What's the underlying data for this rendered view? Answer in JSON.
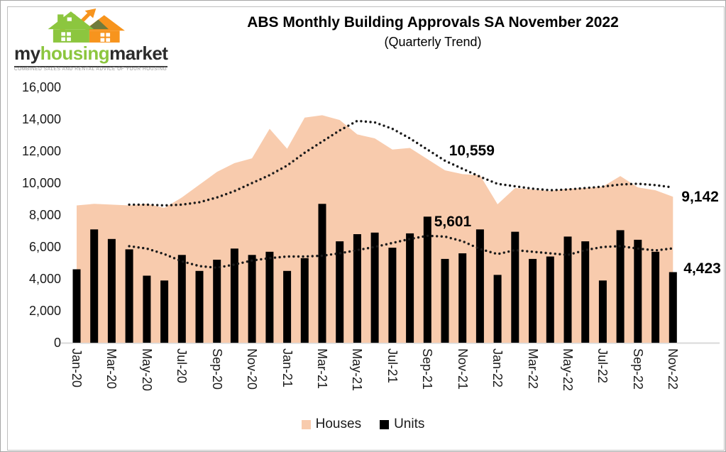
{
  "logo": {
    "word_parts": [
      "my",
      "housing",
      "market"
    ],
    "tagline": "COMBINED SALES AND RENTAL ADVICE OF YOUR HOUSING MARKET",
    "green": "#8CC63F",
    "orange": "#F7941D",
    "dark": "#2B2B2B"
  },
  "title": "ABS Monthly Building Approvals SA November 2022",
  "subtitle": "(Quarterly Trend)",
  "y_axis": {
    "ticks": [
      "16,000",
      "14,000",
      "12,000",
      "10,000",
      "8,000",
      "6,000",
      "4,000",
      "2,000",
      "0"
    ]
  },
  "x_axis": {
    "tick_labels": [
      "Jan-20",
      "Mar-20",
      "May-20",
      "Jul-20",
      "Sep-20",
      "Nov-20",
      "Jan-21",
      "Mar-21",
      "May-21",
      "Jul-21",
      "Sep-21",
      "Nov-21",
      "Jan-22",
      "Mar-22",
      "May-22",
      "Jul-22",
      "Sep-22",
      "Nov-22"
    ]
  },
  "legend": [
    {
      "label": "Houses",
      "color": "#F8CBAD"
    },
    {
      "label": "Units",
      "color": "#000000"
    }
  ],
  "chart_data": {
    "type": "combo: area (Houses) + bar (Units) + dotted quarterly trend lines",
    "title": "ABS Monthly Building Approvals SA November 2022",
    "subtitle": "(Quarterly Trend)",
    "ylim": [
      0,
      16000
    ],
    "y_tick_step": 2000,
    "grid": false,
    "legend_position": "bottom",
    "months": [
      "Jan-20",
      "Feb-20",
      "Mar-20",
      "Apr-20",
      "May-20",
      "Jun-20",
      "Jul-20",
      "Aug-20",
      "Sep-20",
      "Oct-20",
      "Nov-20",
      "Dec-20",
      "Jan-21",
      "Feb-21",
      "Mar-21",
      "Apr-21",
      "May-21",
      "Jun-21",
      "Jul-21",
      "Aug-21",
      "Sep-21",
      "Oct-21",
      "Nov-21",
      "Dec-21",
      "Jan-22",
      "Feb-22",
      "Mar-22",
      "Apr-22",
      "May-22",
      "Jun-22",
      "Jul-22",
      "Aug-22",
      "Sep-22",
      "Oct-22",
      "Nov-22"
    ],
    "series": [
      {
        "name": "Houses",
        "type": "area",
        "color": "#F8CBAD",
        "values": [
          8600,
          8700,
          8650,
          8600,
          8700,
          8450,
          9100,
          9900,
          10700,
          11250,
          11550,
          13400,
          12150,
          14100,
          14250,
          13950,
          13050,
          12800,
          12100,
          12200,
          11500,
          10800,
          10559,
          10490,
          8670,
          9690,
          9600,
          9510,
          9640,
          9690,
          9780,
          10440,
          9730,
          9550,
          9142
        ]
      },
      {
        "name": "Units",
        "type": "bar",
        "color": "#000000",
        "values": [
          4600,
          7100,
          6500,
          5850,
          4200,
          3900,
          5500,
          4500,
          5200,
          5900,
          5500,
          5700,
          4500,
          5300,
          8700,
          6350,
          6800,
          6900,
          5950,
          6850,
          7900,
          5250,
          5601,
          7100,
          4250,
          6950,
          5250,
          5400,
          6650,
          6350,
          3900,
          7050,
          6450,
          5700,
          4423
        ]
      },
      {
        "name": "Houses quarterly trend",
        "type": "dotted_line",
        "color": "#1A1A1A",
        "start_month": "Apr-20",
        "values": [
          8650,
          8650,
          8600,
          8650,
          8800,
          9100,
          9500,
          10000,
          10500,
          11100,
          11900,
          12600,
          13300,
          13900,
          13800,
          13400,
          12800,
          12100,
          11400,
          10900,
          10400,
          9950,
          9800,
          9650,
          9550,
          9600,
          9690,
          9780,
          9910,
          9960,
          9870,
          9730
        ]
      },
      {
        "name": "Units quarterly trend",
        "type": "dotted_line",
        "color": "#1A1A1A",
        "start_month": "Apr-20",
        "values": [
          6050,
          5900,
          5550,
          5100,
          4800,
          4700,
          4900,
          5150,
          5300,
          5400,
          5400,
          5450,
          5600,
          5800,
          6000,
          6250,
          6500,
          6700,
          6650,
          6360,
          5870,
          5550,
          5800,
          5700,
          5600,
          5500,
          5800,
          6000,
          6050,
          5900,
          5780,
          5910
        ]
      }
    ],
    "annotations": [
      {
        "label": "10,559",
        "month": "Nov-21",
        "series": "Houses",
        "value": 10559
      },
      {
        "label": "5,601",
        "month": "Nov-21",
        "series": "Units",
        "value": 5601
      },
      {
        "label": "9,142",
        "month": "Nov-22",
        "series": "Houses",
        "value": 9142
      },
      {
        "label": "4,423",
        "month": "Nov-22",
        "series": "Units",
        "value": 4423
      }
    ]
  }
}
